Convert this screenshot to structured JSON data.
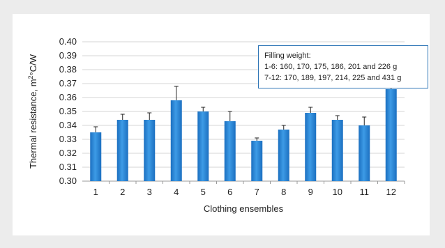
{
  "chart_data": {
    "type": "bar",
    "categories": [
      "1",
      "2",
      "3",
      "4",
      "5",
      "6",
      "7",
      "8",
      "9",
      "10",
      "11",
      "12"
    ],
    "values": [
      0.335,
      0.344,
      0.344,
      0.358,
      0.35,
      0.343,
      0.329,
      0.337,
      0.349,
      0.344,
      0.34,
      0.366
    ],
    "error_plus": [
      0.004,
      0.004,
      0.005,
      0.01,
      0.003,
      0.007,
      0.002,
      0.003,
      0.004,
      0.003,
      0.006,
      0.005
    ],
    "xlabel": "Clothing ensembles",
    "ylabel_main": "Thermal resistance, m",
    "ylabel_sup": "2",
    "ylabel_rest": "°C/W",
    "ylim": [
      0.3,
      0.4
    ],
    "yticks": [
      "0.30",
      "0.31",
      "0.32",
      "0.33",
      "0.34",
      "0.35",
      "0.36",
      "0.37",
      "0.38",
      "0.39",
      "0.40"
    ],
    "grid": true,
    "bar_color": "#2e8ad8",
    "note": {
      "title": "Filling weight:",
      "line1": "1-6: 160, 170, 175, 186, 201 and 226 g",
      "line2": "7-12: 170, 189, 197, 214, 225 and 431 g"
    }
  }
}
